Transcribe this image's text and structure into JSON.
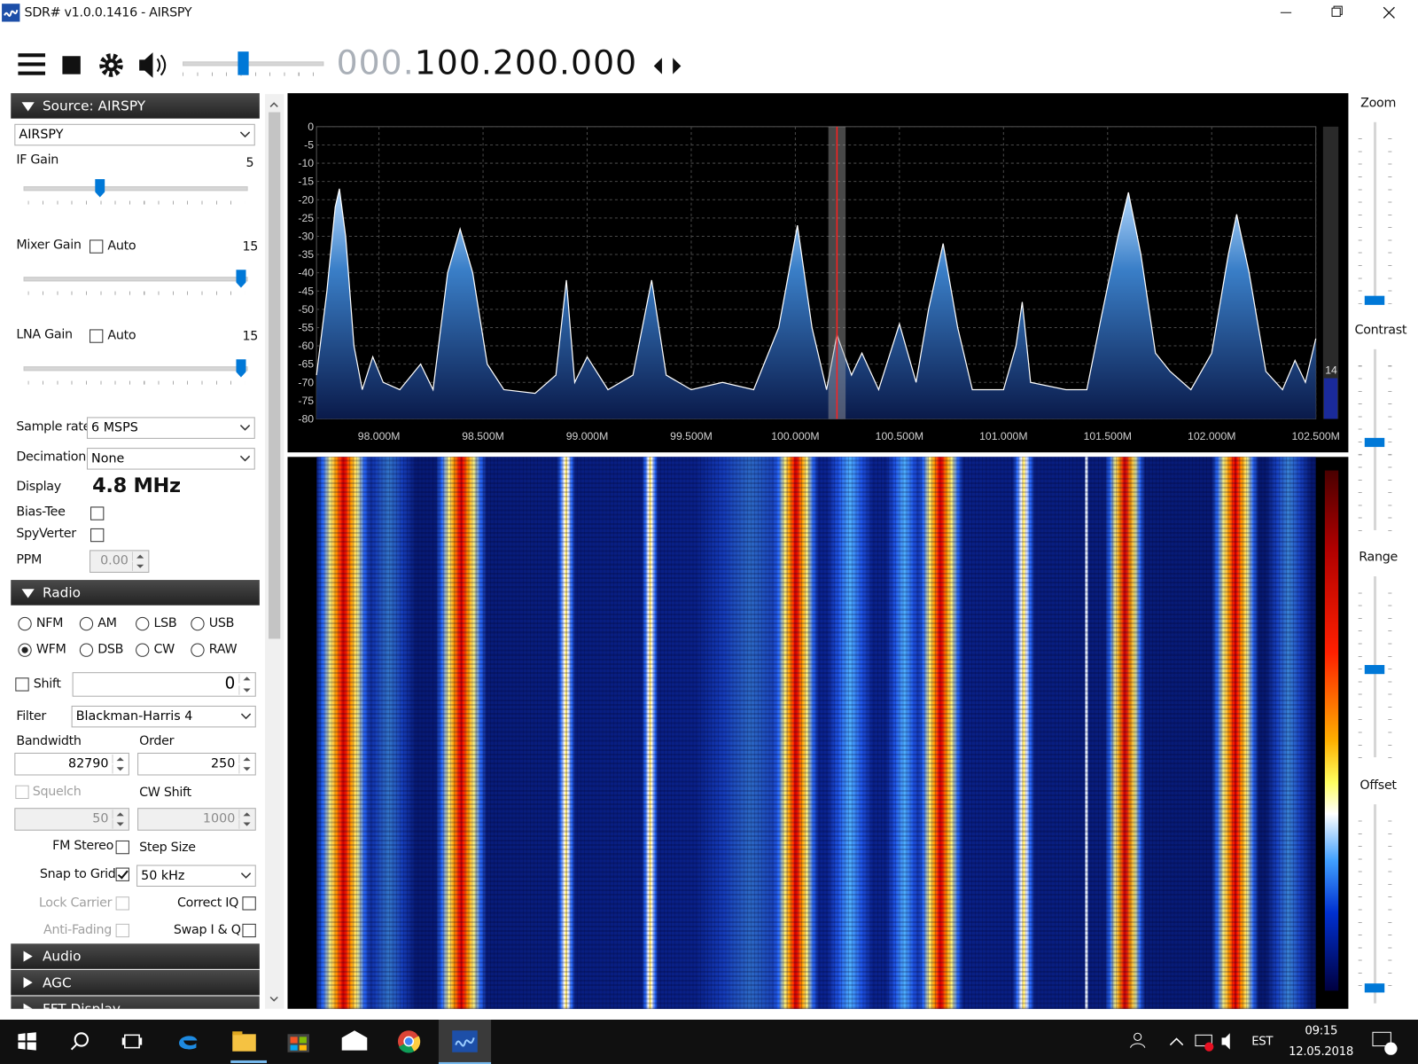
{
  "window": {
    "title": "SDR# v1.0.0.1416 - AIRSPY"
  },
  "toolbar": {
    "frequency_dim": "000.",
    "frequency": "100.200.000"
  },
  "source": {
    "header": "Source: AIRSPY",
    "device": "AIRSPY",
    "if_gain": {
      "label": "IF Gain",
      "value": 5
    },
    "mixer_gain": {
      "label": "Mixer Gain",
      "auto": {
        "label": "Auto",
        "checked": false
      },
      "value": 15
    },
    "lna_gain": {
      "label": "LNA Gain",
      "auto": {
        "label": "Auto",
        "checked": false
      },
      "value": 15
    },
    "sample_rate": {
      "label": "Sample rate",
      "value": "6 MSPS"
    },
    "decimation": {
      "label": "Decimation",
      "value": "None"
    },
    "display": {
      "label": "Display",
      "value": "4.8 MHz"
    },
    "bias_tee": {
      "label": "Bias-Tee",
      "checked": false
    },
    "spyverter": {
      "label": "SpyVerter",
      "checked": false
    },
    "ppm": {
      "label": "PPM",
      "value": "0.00"
    }
  },
  "radio": {
    "header": "Radio",
    "modes": [
      {
        "label": "NFM",
        "checked": false
      },
      {
        "label": "AM",
        "checked": false
      },
      {
        "label": "LSB",
        "checked": false
      },
      {
        "label": "USB",
        "checked": false
      },
      {
        "label": "WFM",
        "checked": true
      },
      {
        "label": "DSB",
        "checked": false
      },
      {
        "label": "CW",
        "checked": false
      },
      {
        "label": "RAW",
        "checked": false
      }
    ],
    "shift": {
      "label": "Shift",
      "checked": false,
      "value": 0
    },
    "filter": {
      "label": "Filter",
      "value": "Blackman-Harris 4"
    },
    "bandwidth": {
      "label": "Bandwidth",
      "value": 82790
    },
    "order": {
      "label": "Order",
      "value": 250
    },
    "squelch": {
      "label": "Squelch",
      "checked": false,
      "value": 50
    },
    "cw_shift": {
      "label": "CW Shift",
      "value": 1000
    },
    "fm_stereo": {
      "label": "FM Stereo",
      "checked": false
    },
    "step_size": {
      "label": "Step Size",
      "value": "50 kHz"
    },
    "snap_to_grid": {
      "label": "Snap to Grid",
      "checked": true
    },
    "lock_carrier": {
      "label": "Lock Carrier",
      "checked": false
    },
    "correct_iq": {
      "label": "Correct IQ",
      "checked": false
    },
    "anti_fading": {
      "label": "Anti-Fading",
      "checked": false
    },
    "swap_iq": {
      "label": "Swap I & Q",
      "checked": false
    }
  },
  "collapsed_panels": [
    "Audio",
    "AGC",
    "FFT Display"
  ],
  "spectrum": {
    "type": "line",
    "color": "#ffffff",
    "grid": true,
    "tuned": 100.2,
    "level": 14,
    "xlim": [
      97.7,
      102.5
    ],
    "xticks": [
      {
        "value": 98,
        "label": "98.000M"
      },
      {
        "value": 98.5,
        "label": "98.500M"
      },
      {
        "value": 99,
        "label": "99.000M"
      },
      {
        "value": 99.5,
        "label": "99.500M"
      },
      {
        "value": 100,
        "label": "100.000M"
      },
      {
        "value": 100.5,
        "label": "100.500M"
      },
      {
        "value": 101,
        "label": "101.000M"
      },
      {
        "value": 101.5,
        "label": "101.500M"
      },
      {
        "value": 102,
        "label": "102.000M"
      },
      {
        "value": 102.5,
        "label": "102.500M"
      }
    ],
    "ylim": [
      -80,
      0
    ],
    "yticks": [
      0,
      -5,
      -10,
      -15,
      -20,
      -25,
      -30,
      -35,
      -40,
      -45,
      -50,
      -55,
      -60,
      -65,
      -70,
      -75,
      -80
    ],
    "x": [
      97.7,
      97.75,
      97.79,
      97.81,
      97.84,
      97.88,
      97.92,
      97.97,
      98.02,
      98.1,
      98.2,
      98.26,
      98.33,
      98.39,
      98.45,
      98.52,
      98.6,
      98.75,
      98.85,
      98.9,
      98.94,
      99.0,
      99.1,
      99.22,
      99.31,
      99.38,
      99.5,
      99.65,
      99.8,
      99.92,
      100.01,
      100.08,
      100.15,
      100.2,
      100.27,
      100.32,
      100.4,
      100.5,
      100.58,
      100.64,
      100.71,
      100.78,
      100.85,
      101.0,
      101.06,
      101.09,
      101.13,
      101.3,
      101.4,
      101.47,
      101.55,
      101.6,
      101.66,
      101.73,
      101.8,
      101.9,
      102.0,
      102.08,
      102.12,
      102.18,
      102.26,
      102.34,
      102.4,
      102.45,
      102.5
    ],
    "values": [
      -68,
      -45,
      -22,
      -17,
      -30,
      -60,
      -72,
      -63,
      -70,
      -72,
      -65,
      -72,
      -40,
      -28,
      -40,
      -65,
      -72,
      -73,
      -68,
      -42,
      -70,
      -63,
      -72,
      -68,
      -42,
      -68,
      -72,
      -70,
      -72,
      -55,
      -27,
      -55,
      -72,
      -57,
      -68,
      -62,
      -72,
      -54,
      -70,
      -50,
      -32,
      -55,
      -72,
      -72,
      -60,
      -48,
      -70,
      -72,
      -72,
      -52,
      -30,
      -18,
      -35,
      -62,
      -67,
      -72,
      -62,
      -35,
      -24,
      -40,
      -67,
      -72,
      -64,
      -70,
      -58
    ]
  },
  "right_controls": [
    "Zoom",
    "Contrast",
    "Range",
    "Offset"
  ],
  "taskbar": {
    "language": "EST",
    "time": "09:15",
    "date": "12.05.2018"
  }
}
